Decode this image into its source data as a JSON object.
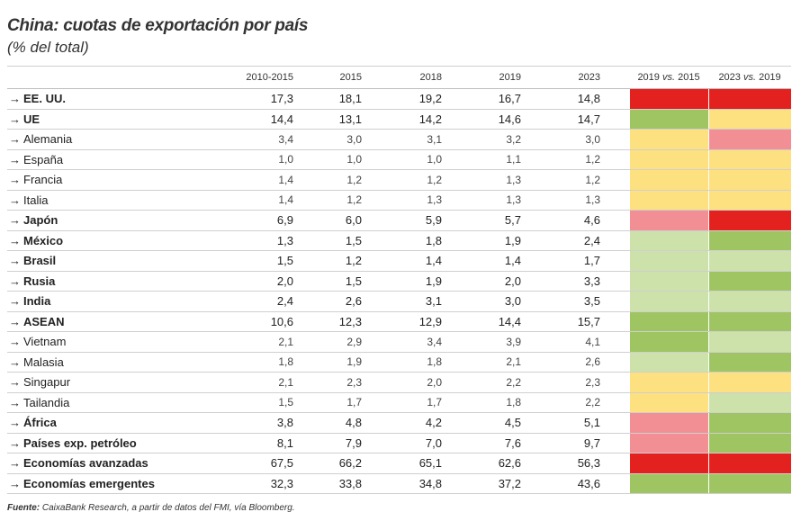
{
  "title": "China: cuotas de exportación por país",
  "subtitle": "(% del total)",
  "headers": [
    "2010-2015",
    "2015",
    "2018",
    "2019",
    "2023",
    "2019 vs. 2015",
    "2023 vs. 2019"
  ],
  "colors": {
    "red": "#e3211f",
    "pink": "#f28f94",
    "yellow": "#fde080",
    "lightgreen": "#cde1ab",
    "green": "#9fc562"
  },
  "rows": [
    {
      "name": "EE. UU.",
      "bold": true,
      "values": [
        "17,3",
        "18,1",
        "19,2",
        "16,7",
        "14,8"
      ],
      "c1": "red",
      "c2": "red"
    },
    {
      "name": "UE",
      "bold": true,
      "values": [
        "14,4",
        "13,1",
        "14,2",
        "14,6",
        "14,7"
      ],
      "c1": "green",
      "c2": "yellow"
    },
    {
      "name": "Alemania",
      "bold": false,
      "values": [
        "3,4",
        "3,0",
        "3,1",
        "3,2",
        "3,0"
      ],
      "c1": "yellow",
      "c2": "pink"
    },
    {
      "name": "España",
      "bold": false,
      "values": [
        "1,0",
        "1,0",
        "1,0",
        "1,1",
        "1,2"
      ],
      "c1": "yellow",
      "c2": "yellow"
    },
    {
      "name": "Francia",
      "bold": false,
      "values": [
        "1,4",
        "1,2",
        "1,2",
        "1,3",
        "1,2"
      ],
      "c1": "yellow",
      "c2": "yellow"
    },
    {
      "name": "Italia",
      "bold": false,
      "values": [
        "1,4",
        "1,2",
        "1,3",
        "1,3",
        "1,3"
      ],
      "c1": "yellow",
      "c2": "yellow"
    },
    {
      "name": "Japón",
      "bold": true,
      "values": [
        "6,9",
        "6,0",
        "5,9",
        "5,7",
        "4,6"
      ],
      "c1": "pink",
      "c2": "red"
    },
    {
      "name": "México",
      "bold": true,
      "values": [
        "1,3",
        "1,5",
        "1,8",
        "1,9",
        "2,4"
      ],
      "c1": "lightgreen",
      "c2": "green"
    },
    {
      "name": "Brasil",
      "bold": true,
      "values": [
        "1,5",
        "1,2",
        "1,4",
        "1,4",
        "1,7"
      ],
      "c1": "lightgreen",
      "c2": "lightgreen"
    },
    {
      "name": "Rusia",
      "bold": true,
      "values": [
        "2,0",
        "1,5",
        "1,9",
        "2,0",
        "3,3"
      ],
      "c1": "lightgreen",
      "c2": "green"
    },
    {
      "name": "India",
      "bold": true,
      "values": [
        "2,4",
        "2,6",
        "3,1",
        "3,0",
        "3,5"
      ],
      "c1": "lightgreen",
      "c2": "lightgreen"
    },
    {
      "name": "ASEAN",
      "bold": true,
      "values": [
        "10,6",
        "12,3",
        "12,9",
        "14,4",
        "15,7"
      ],
      "c1": "green",
      "c2": "green"
    },
    {
      "name": "Vietnam",
      "bold": false,
      "values": [
        "2,1",
        "2,9",
        "3,4",
        "3,9",
        "4,1"
      ],
      "c1": "green",
      "c2": "lightgreen"
    },
    {
      "name": "Malasia",
      "bold": false,
      "values": [
        "1,8",
        "1,9",
        "1,8",
        "2,1",
        "2,6"
      ],
      "c1": "lightgreen",
      "c2": "green"
    },
    {
      "name": "Singapur",
      "bold": false,
      "values": [
        "2,1",
        "2,3",
        "2,0",
        "2,2",
        "2,3"
      ],
      "c1": "yellow",
      "c2": "yellow"
    },
    {
      "name": "Tailandia",
      "bold": false,
      "values": [
        "1,5",
        "1,7",
        "1,7",
        "1,8",
        "2,2"
      ],
      "c1": "yellow",
      "c2": "lightgreen"
    },
    {
      "name": "África",
      "bold": true,
      "values": [
        "3,8",
        "4,8",
        "4,2",
        "4,5",
        "5,1"
      ],
      "c1": "pink",
      "c2": "green"
    },
    {
      "name": "Países exp. petróleo",
      "bold": true,
      "values": [
        "8,1",
        "7,9",
        "7,0",
        "7,6",
        "9,7"
      ],
      "c1": "pink",
      "c2": "green"
    },
    {
      "name": "Economías avanzadas",
      "bold": true,
      "values": [
        "67,5",
        "66,2",
        "65,1",
        "62,6",
        "56,3"
      ],
      "c1": "red",
      "c2": "red"
    },
    {
      "name": "Economías emergentes",
      "bold": true,
      "values": [
        "32,3",
        "33,8",
        "34,8",
        "37,2",
        "43,6"
      ],
      "c1": "green",
      "c2": "green"
    }
  ],
  "source_label": "Fuente:",
  "source_text": " CaixaBank Research, a partir de datos del FMI, vía Bloomberg."
}
